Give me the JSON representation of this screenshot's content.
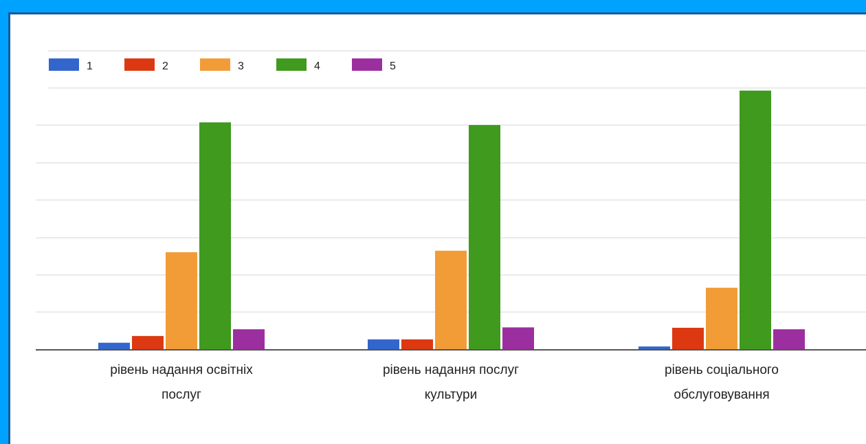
{
  "chart_data": {
    "type": "bar",
    "categories": [
      [
        "рівень надання освітніх",
        "послуг"
      ],
      [
        "рівень надання послуг",
        "культури"
      ],
      [
        "рівень соціального",
        "обслуговування"
      ]
    ],
    "series": [
      {
        "name": "1",
        "color": "#3366cc",
        "values": [
          1.9,
          2.8,
          0.9
        ]
      },
      {
        "name": "2",
        "color": "#dc3912",
        "values": [
          3.7,
          2.8,
          5.9
        ]
      },
      {
        "name": "3",
        "color": "#f29c38",
        "values": [
          26.1,
          26.5,
          16.6
        ]
      },
      {
        "name": "4",
        "color": "#3f9a1e",
        "values": [
          60.8,
          60.1,
          69.3
        ]
      },
      {
        "name": "5",
        "color": "#9c2fa0",
        "values": [
          5.5,
          6.0,
          5.5
        ]
      }
    ],
    "ylim": [
      0,
      70
    ],
    "grid": true,
    "legend_position": "top-left"
  }
}
